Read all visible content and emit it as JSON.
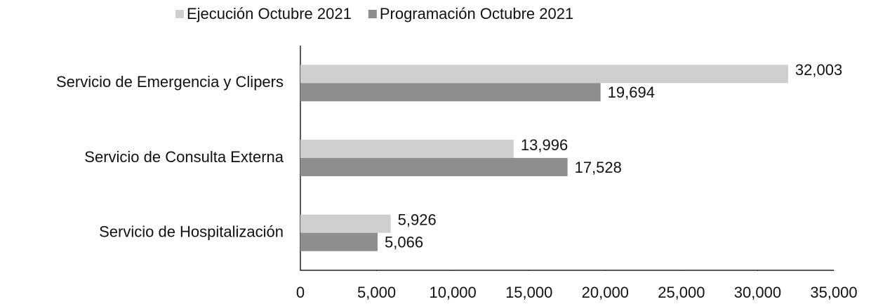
{
  "chart_data": {
    "type": "bar",
    "orientation": "horizontal",
    "categories": [
      "Servicio de Emergencia y Clipers",
      "Servicio de Consulta Externa",
      "Servicio de Hospitalización"
    ],
    "series": [
      {
        "name": "Ejecución Octubre 2021",
        "color": "#cfcfcf",
        "values": [
          32003,
          13996,
          5926
        ],
        "value_labels": [
          "32,003",
          "13,996",
          "5,926"
        ]
      },
      {
        "name": "Programación Octubre 2021",
        "color": "#8e8e8e",
        "values": [
          19694,
          17528,
          5066
        ],
        "value_labels": [
          "19,694",
          "17,528",
          "5,066"
        ]
      }
    ],
    "xlim": [
      0,
      35000
    ],
    "xticks": [
      0,
      {
        "value": 5000,
        "label": "5,000"
      },
      {
        "value": 10000,
        "label": "10,000"
      },
      {
        "value": 15000,
        "label": "15,000"
      },
      {
        "value": 20000,
        "label": "20,000"
      },
      {
        "value": 25000,
        "label": "25,000"
      },
      {
        "value": 30000,
        "label": "30,000"
      },
      {
        "value": 35000,
        "label": "35,000"
      }
    ],
    "legend": "top"
  }
}
